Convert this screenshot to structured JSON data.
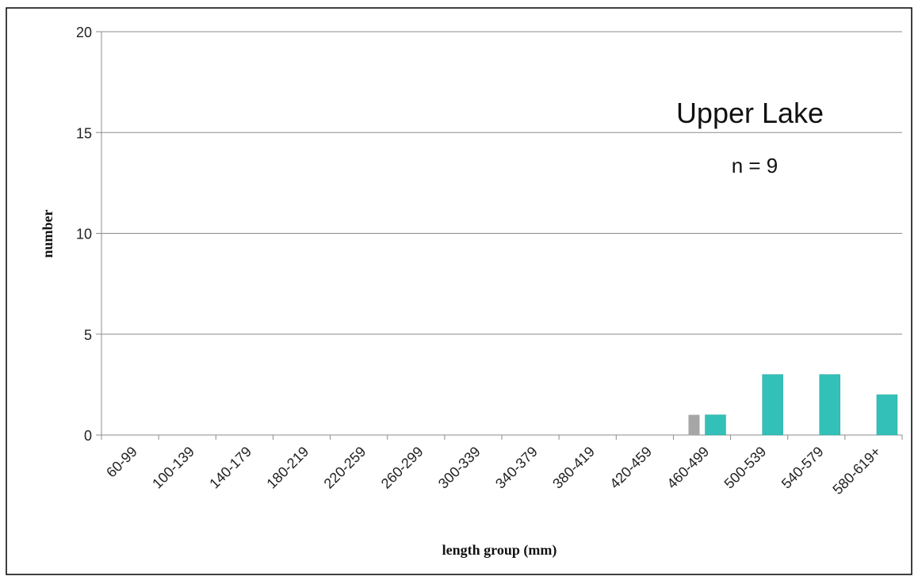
{
  "chart_data": {
    "type": "bar",
    "xlabel": "length group (mm)",
    "ylabel": "number",
    "ylim": [
      0,
      20
    ],
    "yticks": [
      0,
      5,
      10,
      15,
      20
    ],
    "grid": true,
    "categories": [
      "60-99",
      "100-139",
      "140-179",
      "180-219",
      "220-259",
      "260-299",
      "300-339",
      "340-379",
      "380-419",
      "420-459",
      "460-499",
      "500-539",
      "540-579",
      "580-619+"
    ],
    "series": [
      {
        "color": "#a6a6a6",
        "values": [
          0,
          0,
          0,
          0,
          0,
          0,
          0,
          0,
          0,
          0,
          1,
          0,
          0,
          0
        ]
      },
      {
        "color": "#33c0b8",
        "values": [
          0,
          0,
          0,
          0,
          0,
          0,
          0,
          0,
          0,
          0,
          1,
          3,
          3,
          2
        ]
      }
    ],
    "annotations": [
      {
        "text": "Upper Lake"
      },
      {
        "text": "n = 9"
      }
    ]
  }
}
